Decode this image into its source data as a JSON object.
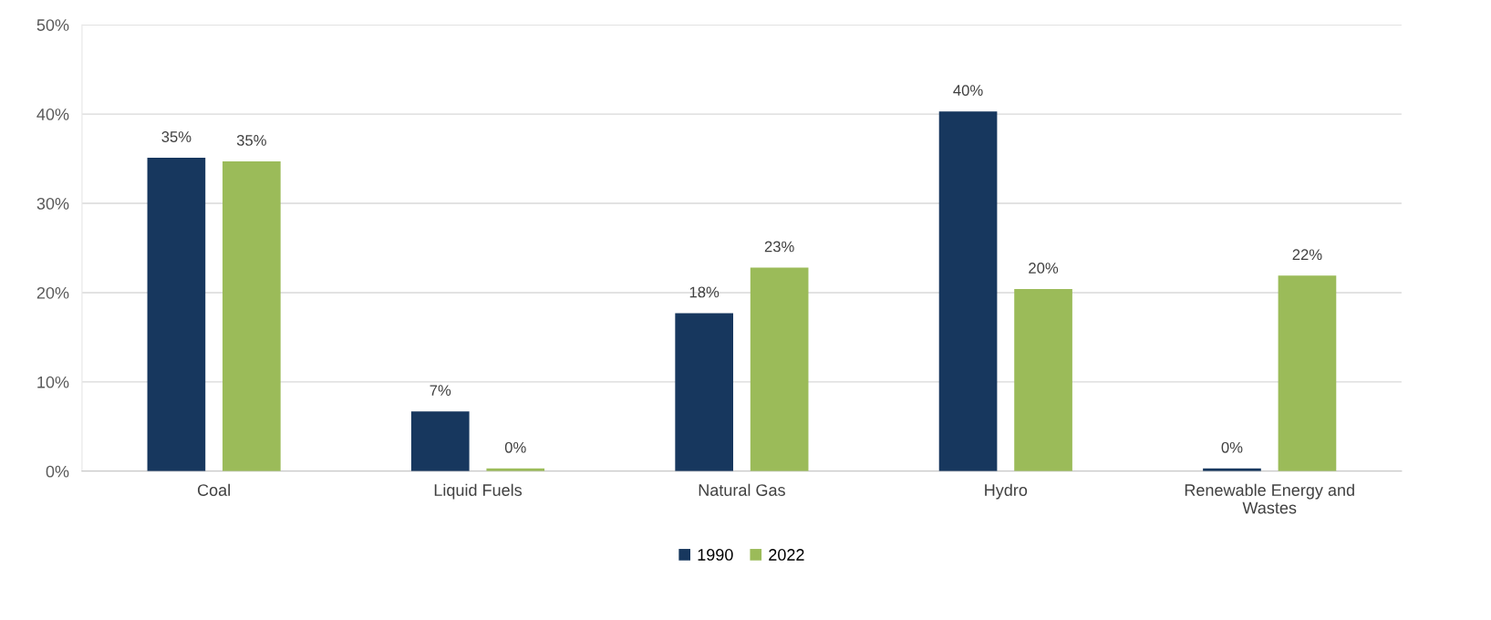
{
  "chart_data": {
    "type": "bar",
    "categories": [
      "Coal",
      "Liquid Fuels",
      "Natural Gas",
      "Hydro",
      "Renewable Energy and\nWastes"
    ],
    "series": [
      {
        "name": "1990",
        "color": "#17375e",
        "values": [
          35.1,
          6.7,
          17.7,
          40.3,
          0.3
        ],
        "value_labels": [
          "35%",
          "7%",
          "18%",
          "40%",
          "0%"
        ]
      },
      {
        "name": "2022",
        "color": "#9bbb59",
        "values": [
          34.7,
          0.3,
          22.8,
          20.4,
          21.9
        ],
        "value_labels": [
          "35%",
          "0%",
          "23%",
          "20%",
          "22%"
        ]
      }
    ],
    "ylim": [
      0,
      50
    ],
    "yticks": [
      {
        "value": 0,
        "label": "0%"
      },
      {
        "value": 10,
        "label": "10%"
      },
      {
        "value": 20,
        "label": "20%"
      },
      {
        "value": 30,
        "label": "30%"
      },
      {
        "value": 40,
        "label": "40%"
      },
      {
        "value": 50,
        "label": "50%"
      }
    ],
    "grid": "y",
    "legend": "bottom"
  }
}
